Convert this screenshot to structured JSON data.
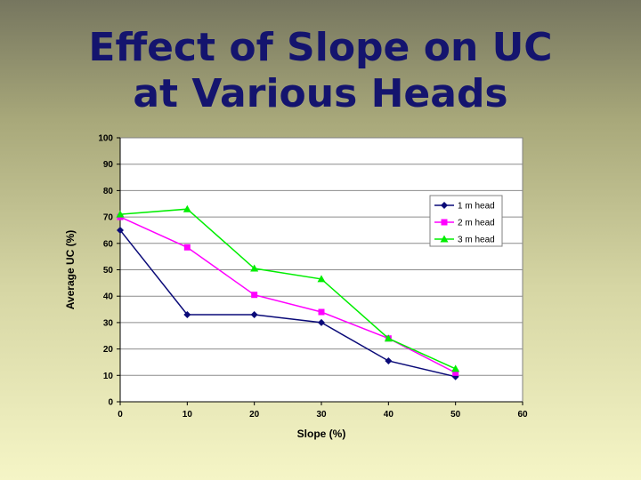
{
  "slide": {
    "title_line1": "Effect of Slope on UC",
    "title_line2": "at Various Heads"
  },
  "colors": {
    "title": "#14146e",
    "series_1": "#0a0a78",
    "series_2": "#ff00ff",
    "series_3": "#00ee00",
    "plot_background": "#ffffff",
    "gridline": "#8c8c8c"
  },
  "chart_data": {
    "type": "line",
    "title": "",
    "xlabel": "Slope (%)",
    "ylabel": "Average UC (%)",
    "xlim": [
      0,
      60
    ],
    "ylim": [
      0,
      100
    ],
    "x_ticks": [
      0,
      10,
      20,
      30,
      40,
      50,
      60
    ],
    "y_ticks": [
      0,
      10,
      20,
      30,
      40,
      50,
      60,
      70,
      80,
      90,
      100
    ],
    "grid": "horizontal",
    "legend_position": "right",
    "x": [
      0,
      10,
      20,
      30,
      40,
      50
    ],
    "series": [
      {
        "name": "1 m head",
        "marker": "diamond",
        "color": "#0a0a78",
        "values": [
          65,
          33,
          33,
          30,
          15.5,
          9.5
        ]
      },
      {
        "name": "2 m head",
        "marker": "square",
        "color": "#ff00ff",
        "values": [
          70,
          58.5,
          40.5,
          34,
          24,
          11
        ]
      },
      {
        "name": "3 m head",
        "marker": "triangle",
        "color": "#00ee00",
        "values": [
          71,
          73,
          50.5,
          46.5,
          24,
          12.5
        ]
      }
    ]
  }
}
